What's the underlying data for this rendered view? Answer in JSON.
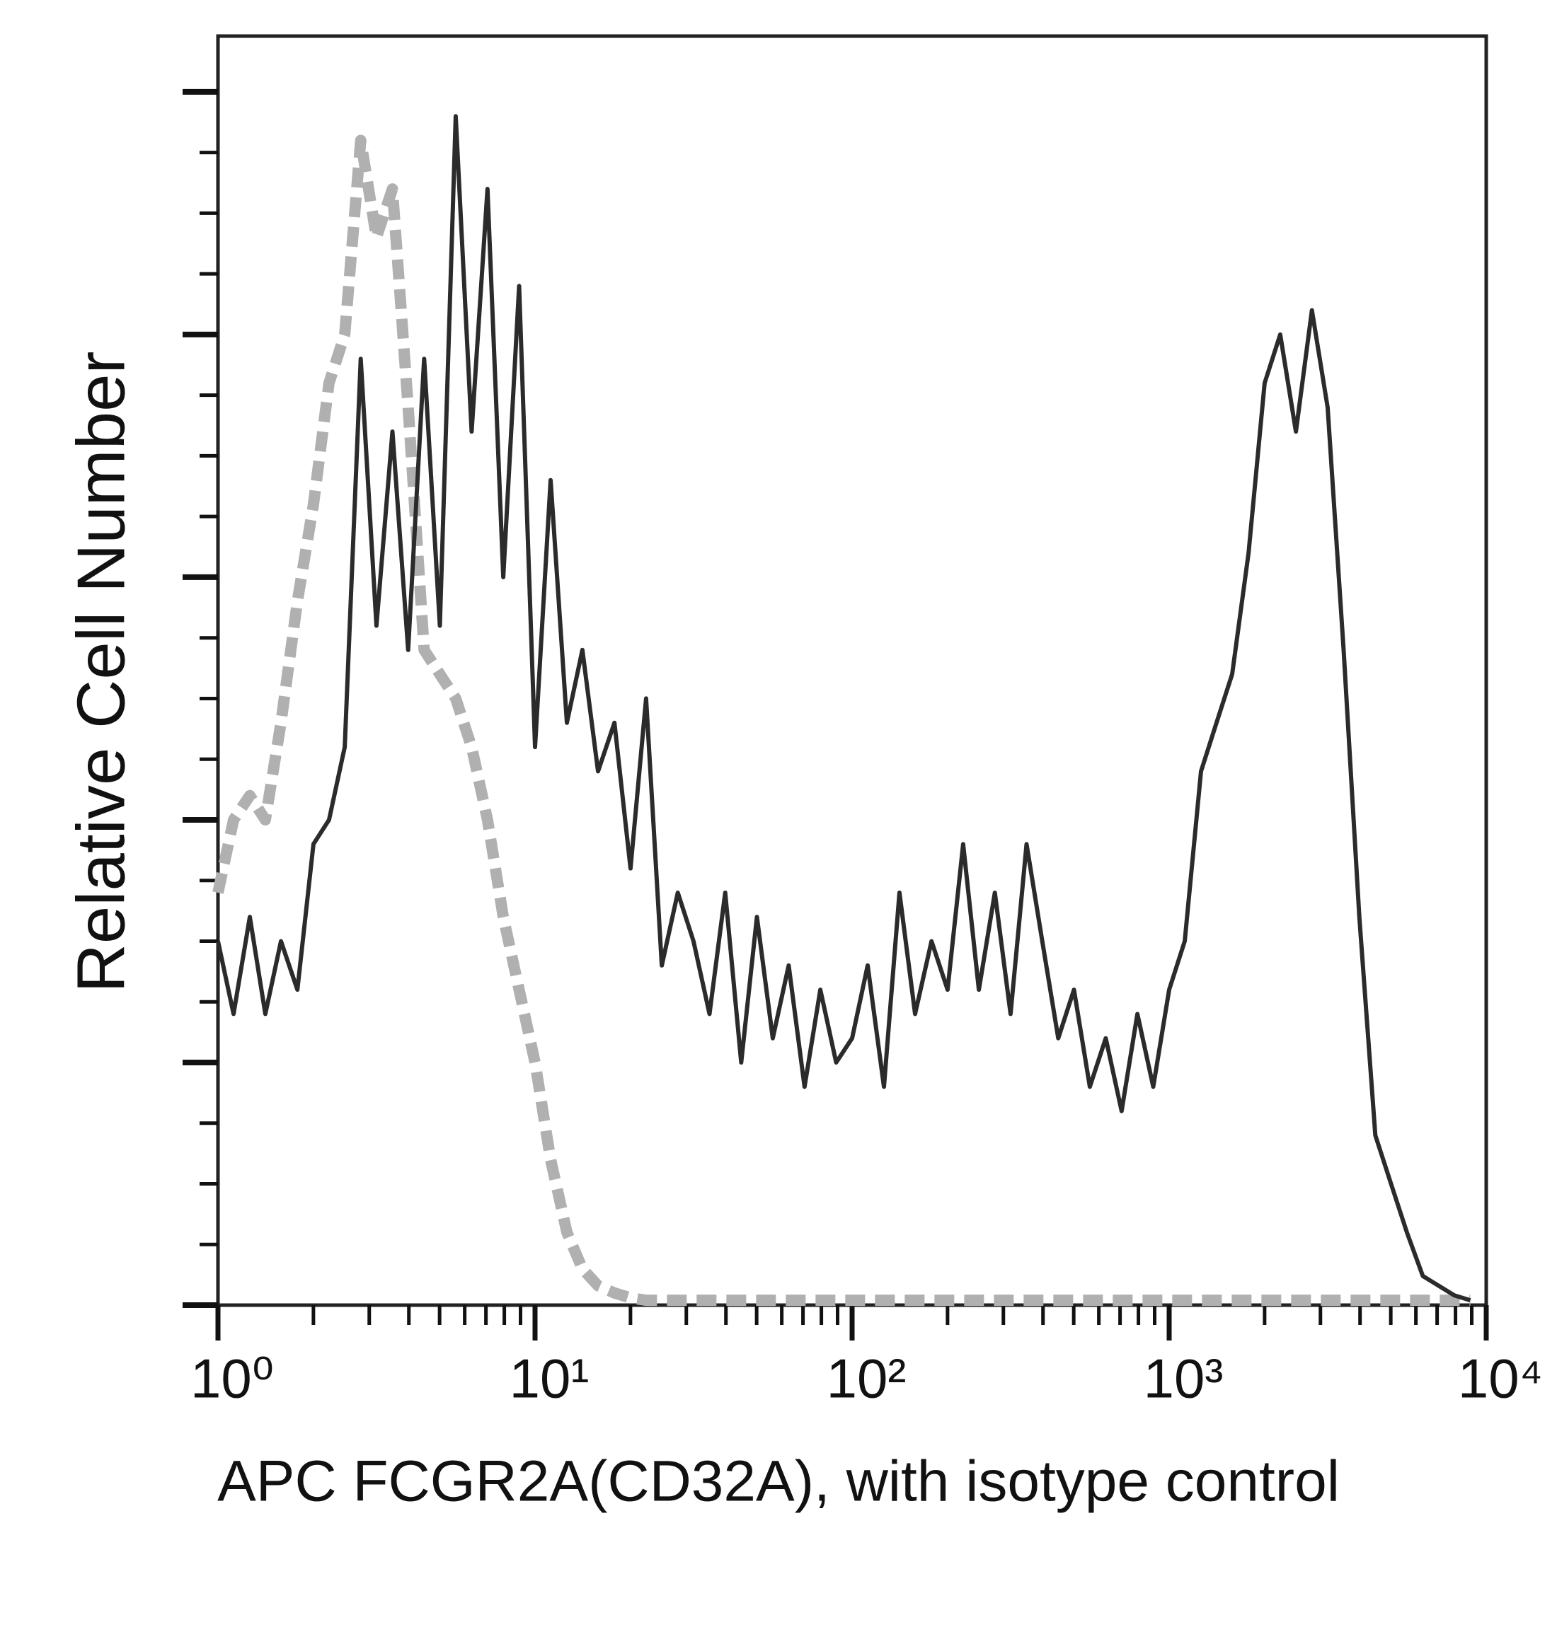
{
  "chart_data": {
    "type": "line",
    "x_label": "APC FCGR2A(CD32A), with isotype control",
    "y_label": "Relative Cell Number",
    "xscale": "log",
    "xlim": [
      1,
      10000
    ],
    "xticks": [
      {
        "value": 1,
        "label": "10⁰"
      },
      {
        "value": 10,
        "label": "10¹"
      },
      {
        "value": 100,
        "label": "10²"
      },
      {
        "value": 1000,
        "label": "10³"
      },
      {
        "value": 10000,
        "label": "10⁴"
      }
    ],
    "xminor_ticks": [
      2,
      3,
      4,
      5,
      6,
      7,
      8,
      9,
      20,
      30,
      40,
      50,
      60,
      70,
      80,
      90,
      200,
      300,
      400,
      500,
      600,
      700,
      800,
      900,
      2000,
      3000,
      4000,
      5000,
      6000,
      7000,
      8000,
      9000
    ],
    "ylim": [
      0,
      5.23
    ],
    "yticks": [
      0,
      1,
      2,
      3,
      4,
      5
    ],
    "yminor_ticks": [
      0.25,
      0.5,
      0.75,
      1.25,
      1.5,
      1.75,
      2.25,
      2.5,
      2.75,
      3.25,
      3.5,
      3.75,
      4.25,
      4.5,
      4.75
    ],
    "x": [
      1,
      1.12,
      1.26,
      1.41,
      1.58,
      1.78,
      2,
      2.24,
      2.51,
      2.82,
      3.16,
      3.55,
      3.98,
      4.47,
      5.01,
      5.62,
      6.31,
      7.08,
      7.94,
      8.91,
      10,
      11.2,
      12.6,
      14.1,
      15.8,
      17.8,
      20,
      22.4,
      25.1,
      28.2,
      31.6,
      35.5,
      39.8,
      44.7,
      50.1,
      56.2,
      63.1,
      70.8,
      79.4,
      89.1,
      100,
      112,
      126,
      141,
      158,
      178,
      200,
      224,
      251,
      282,
      316,
      355,
      398,
      447,
      501,
      562,
      631,
      708,
      794,
      891,
      1000,
      1120,
      1260,
      1410,
      1580,
      1780,
      2000,
      2240,
      2510,
      2820,
      3160,
      3550,
      3980,
      4470,
      5010,
      5620,
      6310,
      7080,
      7940,
      8910
    ],
    "series": [
      {
        "color": "#b0b0b0",
        "style": "dashed",
        "values": [
          1.7,
          2.0,
          2.1,
          2.0,
          2.4,
          2.9,
          3.3,
          3.8,
          4.0,
          4.8,
          4.4,
          4.6,
          3.7,
          2.7,
          2.6,
          2.5,
          2.3,
          2.0,
          1.6,
          1.3,
          1.0,
          0.6,
          0.3,
          0.15,
          0.08,
          0.05,
          0.03,
          0.02,
          0.02,
          0.02,
          0.02,
          0.02,
          0.02,
          0.02,
          0.02,
          0.02,
          0.02,
          0.02,
          0.02,
          0.02,
          0.02,
          0.02,
          0.02,
          0.02,
          0.02,
          0.02,
          0.02,
          0.02,
          0.02,
          0.02,
          0.02,
          0.02,
          0.02,
          0.02,
          0.02,
          0.02,
          0.02,
          0.02,
          0.02,
          0.02,
          0.02,
          0.02,
          0.02,
          0.02,
          0.02,
          0.02,
          0.02,
          0.02,
          0.02,
          0.02,
          0.02,
          0.02,
          0.02,
          0.02,
          0.02,
          0.02,
          0.02,
          0.02,
          0.02,
          0.02
        ]
      },
      {
        "color": "#2b2b2b",
        "style": "solid",
        "values": [
          1.5,
          1.2,
          1.6,
          1.2,
          1.5,
          1.3,
          1.9,
          2.0,
          2.3,
          3.9,
          2.8,
          3.6,
          2.7,
          3.9,
          2.8,
          4.9,
          3.6,
          4.6,
          3.0,
          4.2,
          2.3,
          3.4,
          2.4,
          2.7,
          2.2,
          2.4,
          1.8,
          2.5,
          1.4,
          1.7,
          1.5,
          1.2,
          1.7,
          1.0,
          1.6,
          1.1,
          1.4,
          0.9,
          1.3,
          1.0,
          1.1,
          1.4,
          0.9,
          1.7,
          1.2,
          1.5,
          1.3,
          1.9,
          1.3,
          1.7,
          1.2,
          1.9,
          1.5,
          1.1,
          1.3,
          0.9,
          1.1,
          0.8,
          1.2,
          0.9,
          1.3,
          1.5,
          2.2,
          2.4,
          2.6,
          3.1,
          3.8,
          4.0,
          3.6,
          4.1,
          3.7,
          2.7,
          1.6,
          0.7,
          0.5,
          0.3,
          0.12,
          0.08,
          0.04,
          0.02
        ]
      }
    ]
  }
}
